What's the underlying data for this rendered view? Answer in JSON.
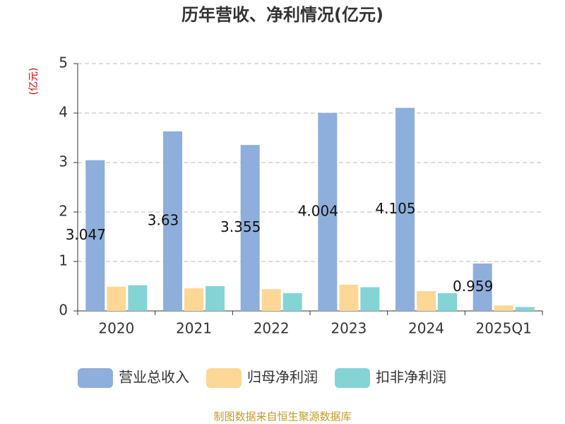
{
  "chart_data": {
    "type": "bar",
    "title": "历年营收、净利情况(亿元)",
    "y_axis_label": "(亿元)",
    "source": "制图数据来自恒生聚源数据库",
    "categories": [
      "2020",
      "2021",
      "2022",
      "2023",
      "2024",
      "2025Q1"
    ],
    "series": [
      {
        "name": "营业总收入",
        "color": "#8eaedb",
        "values": [
          3.047,
          3.63,
          3.355,
          4.004,
          4.105,
          0.959
        ],
        "data_labels": true
      },
      {
        "name": "归母净利润",
        "color": "#fdd796",
        "values": [
          0.49,
          0.46,
          0.44,
          0.53,
          0.4,
          0.11
        ],
        "data_labels": false
      },
      {
        "name": "扣非净利润",
        "color": "#84d4d6",
        "values": [
          0.52,
          0.5,
          0.36,
          0.48,
          0.36,
          0.08
        ],
        "data_labels": false
      }
    ],
    "ylim": [
      0,
      5
    ],
    "yticks": [
      0,
      1,
      2,
      3,
      4,
      5
    ],
    "grid": true,
    "legend": "bottom"
  }
}
